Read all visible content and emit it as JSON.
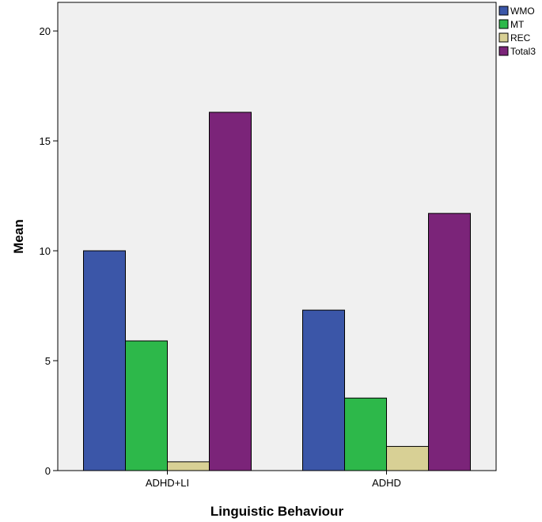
{
  "chart_data": {
    "type": "bar",
    "categories": [
      "ADHD+LI",
      "ADHD"
    ],
    "series": [
      {
        "name": "WMO",
        "color": "#3b56a8",
        "values": [
          10.0,
          7.3
        ]
      },
      {
        "name": "MT",
        "color": "#2db84a",
        "values": [
          5.9,
          3.3
        ]
      },
      {
        "name": "REC",
        "color": "#d8d095",
        "values": [
          0.4,
          1.1
        ]
      },
      {
        "name": "Total3",
        "color": "#7b2479",
        "values": [
          16.3,
          11.7
        ]
      }
    ],
    "xlabel": "Linguistic Behaviour",
    "ylabel": "Mean",
    "ylim": [
      0,
      21.3
    ],
    "yticks": [
      0,
      5,
      10,
      15,
      20
    ],
    "grid": false,
    "legend_position": "top-right",
    "plot_background": "#f0f0f0"
  }
}
